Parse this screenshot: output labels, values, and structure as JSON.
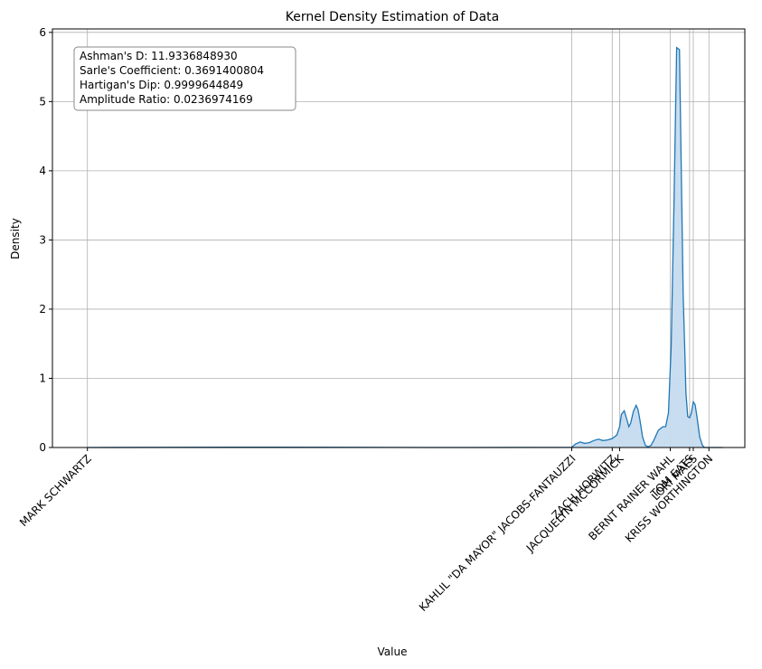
{
  "chart_data": {
    "type": "area",
    "title": "Kernel Density Estimation of Data",
    "xlabel": "Value",
    "ylabel": "Density",
    "ylim": [
      0,
      6.05
    ],
    "y_ticks": [
      0,
      1,
      2,
      3,
      4,
      5,
      6
    ],
    "grid": true,
    "x_tick_labels": [
      "MARK SCHWARTZ",
      "KAHLIL \"DA MAYOR\" JACOBS-FANTAUZZI",
      "ZACH HORWITZ",
      "JACQUELYN MCCORMICK",
      "BERNT RAINER WAHL",
      "TOM EATS",
      "LORI MAES",
      "KRISS WORTHINGTON"
    ],
    "annotation": {
      "lines": [
        "Ashman's D: 11.9336848930",
        "Sarle's Coefficient: 0.3691400804",
        "Hartigan's Dip: 0.9999644849",
        "Amplitude Ratio: 0.0236974169"
      ]
    },
    "series": [
      {
        "fill_color": "#c6dbef",
        "line_color": "#1f77b4",
        "x_rank": [
          0,
          200,
          380,
          400,
          526,
          530,
          535,
          540,
          545,
          550,
          555,
          560,
          565,
          570,
          575,
          578,
          580,
          583,
          586,
          588,
          590,
          593,
          596,
          598,
          600,
          603,
          606,
          609,
          612,
          615,
          620,
          625,
          628,
          631,
          634,
          637,
          640,
          643,
          645,
          647,
          649,
          650,
          652,
          654,
          656,
          658,
          660,
          662,
          665,
          668,
          670,
          672,
          674,
          676,
          680,
          685,
          690
        ],
        "density": [
          0,
          0.005,
          0,
          0,
          0.002,
          0.05,
          0.08,
          0.06,
          0.07,
          0.1,
          0.12,
          0.1,
          0.11,
          0.13,
          0.18,
          0.3,
          0.48,
          0.53,
          0.4,
          0.3,
          0.35,
          0.52,
          0.61,
          0.55,
          0.4,
          0.15,
          0.03,
          0.01,
          0.03,
          0.1,
          0.25,
          0.3,
          0.3,
          0.5,
          1.45,
          3.5,
          5.78,
          5.75,
          4.0,
          2.2,
          1.3,
          0.8,
          0.45,
          0.43,
          0.5,
          0.66,
          0.62,
          0.45,
          0.15,
          0.03,
          0.0,
          0,
          0,
          0,
          0,
          0,
          0
        ]
      }
    ]
  }
}
